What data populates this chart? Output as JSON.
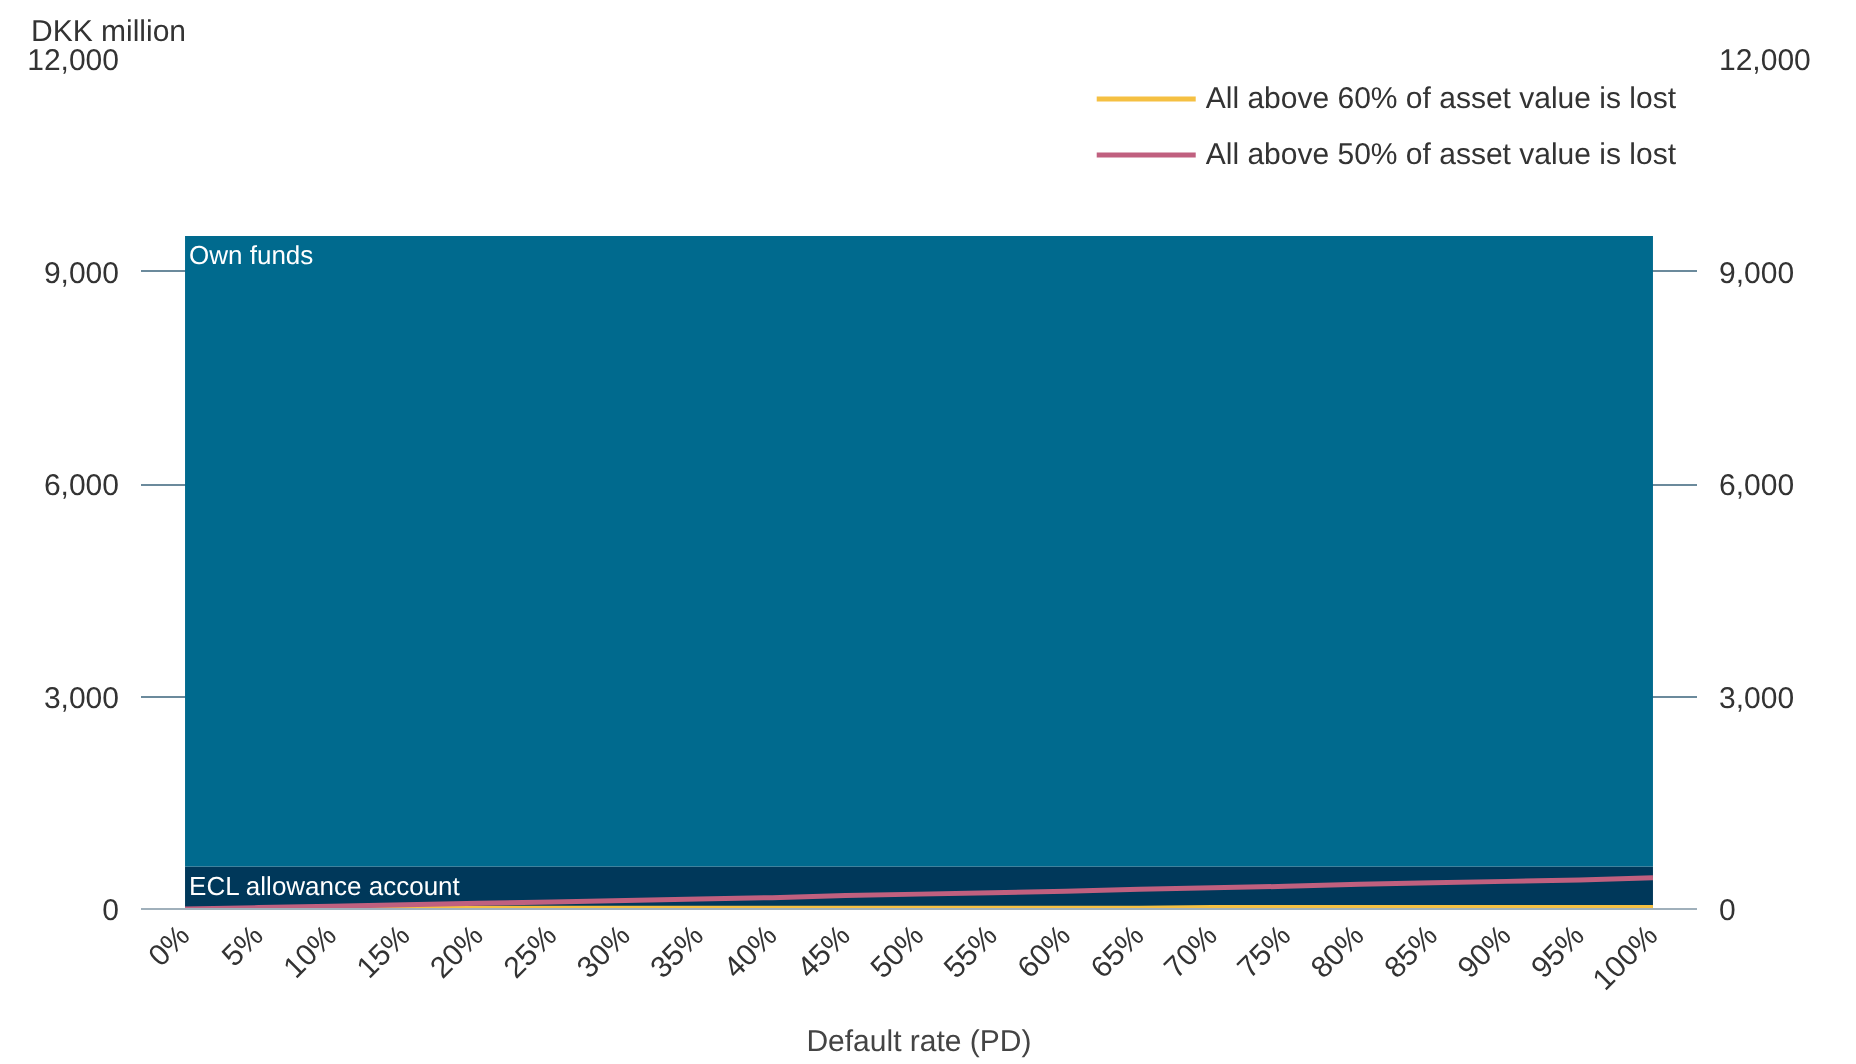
{
  "chart_data": {
    "type": "area",
    "stacked": true,
    "xlabel": "Default rate (PD)",
    "ylabel": "DKK million",
    "categories": [
      "0%",
      "5%",
      "10%",
      "15%",
      "20%",
      "25%",
      "30%",
      "35%",
      "40%",
      "45%",
      "50%",
      "55%",
      "60%",
      "65%",
      "70%",
      "75%",
      "80%",
      "85%",
      "90%",
      "95%",
      "100%"
    ],
    "series": [
      {
        "name": "ECL allowance account",
        "color": "#00385a",
        "values": [
          600,
          600,
          600,
          600,
          600,
          600,
          600,
          600,
          600,
          600,
          600,
          600,
          600,
          600,
          600,
          600,
          600,
          600,
          600,
          600,
          600
        ]
      },
      {
        "name": "Own funds",
        "color": "#006a8e",
        "values": [
          8900,
          8900,
          8900,
          8900,
          8900,
          8900,
          8900,
          8900,
          8900,
          8900,
          8900,
          8900,
          8900,
          8900,
          8900,
          8900,
          8900,
          8900,
          8900,
          8900,
          8900
        ]
      },
      {
        "name": "All above 60% of asset value is lost",
        "type": "line",
        "color": "#f5c042",
        "values": [
          null,
          null,
          10,
          10,
          10,
          10,
          10,
          10,
          10,
          10,
          10,
          10,
          10,
          10,
          20,
          20,
          20,
          20,
          20,
          20,
          20
        ]
      },
      {
        "name": "All above 50% of asset value is lost",
        "type": "line",
        "color": "#c0607f",
        "values": [
          0,
          20,
          40,
          60,
          80,
          100,
          120,
          140,
          160,
          190,
          210,
          230,
          250,
          280,
          300,
          320,
          350,
          370,
          390,
          410,
          440
        ]
      }
    ],
    "ylim": [
      0,
      12000
    ],
    "yticks": [
      {
        "value": 0,
        "label": "0"
      },
      {
        "value": 3000,
        "label": "3,000"
      },
      {
        "value": 6000,
        "label": "6,000"
      },
      {
        "value": 9000,
        "label": "9,000"
      },
      {
        "value": 12000,
        "label": "12,000"
      }
    ],
    "y2lim": [
      0,
      12000
    ],
    "y2ticks": [
      {
        "value": 0,
        "label": "0"
      },
      {
        "value": 3000,
        "label": "3,000"
      },
      {
        "value": 6000,
        "label": "6,000"
      },
      {
        "value": 9000,
        "label": "9,000"
      },
      {
        "value": 12000,
        "label": "12,000"
      }
    ],
    "grid": "y",
    "legend": "top right"
  }
}
